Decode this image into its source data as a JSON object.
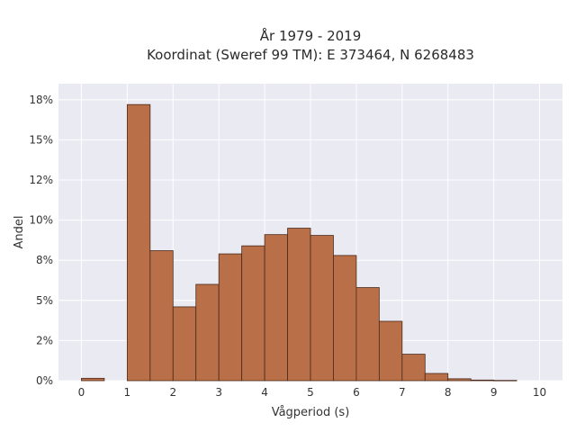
{
  "chart_data": {
    "type": "bar",
    "title_line1": "År 1979 - 2019",
    "title_line2": "Koordinat (Sweref 99 TM): E 373464, N 6268483",
    "xlabel": "Vågperiod (s)",
    "ylabel": "Andel",
    "xlim": [
      -0.5,
      10.5
    ],
    "ylim": [
      0,
      18.5
    ],
    "x_ticks": [
      0,
      1,
      2,
      3,
      4,
      5,
      6,
      7,
      8,
      9,
      10
    ],
    "y_ticks": [
      {
        "value": 0,
        "label": "0%"
      },
      {
        "value": 2.5,
        "label": "2%"
      },
      {
        "value": 5,
        "label": "5%"
      },
      {
        "value": 7.5,
        "label": "8%"
      },
      {
        "value": 10,
        "label": "10%"
      },
      {
        "value": 12.5,
        "label": "12%"
      },
      {
        "value": 15,
        "label": "15%"
      },
      {
        "value": 17.5,
        "label": "18%"
      }
    ],
    "bin_width": 0.5,
    "bins": [
      {
        "x": 0.0,
        "value": 0.15
      },
      {
        "x": 0.5,
        "value": 0.0
      },
      {
        "x": 1.0,
        "value": 17.2
      },
      {
        "x": 1.5,
        "value": 8.1
      },
      {
        "x": 2.0,
        "value": 4.6
      },
      {
        "x": 2.5,
        "value": 6.0
      },
      {
        "x": 3.0,
        "value": 7.9
      },
      {
        "x": 3.5,
        "value": 8.4
      },
      {
        "x": 4.0,
        "value": 9.1
      },
      {
        "x": 4.5,
        "value": 9.5
      },
      {
        "x": 5.0,
        "value": 9.05
      },
      {
        "x": 5.5,
        "value": 7.8
      },
      {
        "x": 6.0,
        "value": 5.8
      },
      {
        "x": 6.5,
        "value": 3.7
      },
      {
        "x": 7.0,
        "value": 1.65
      },
      {
        "x": 7.5,
        "value": 0.45
      },
      {
        "x": 8.0,
        "value": 0.12
      },
      {
        "x": 8.5,
        "value": 0.04
      },
      {
        "x": 9.0,
        "value": 0.02
      }
    ],
    "bar_color": "#b96f48",
    "plot_background": "#eaeaf2",
    "grid": true
  }
}
